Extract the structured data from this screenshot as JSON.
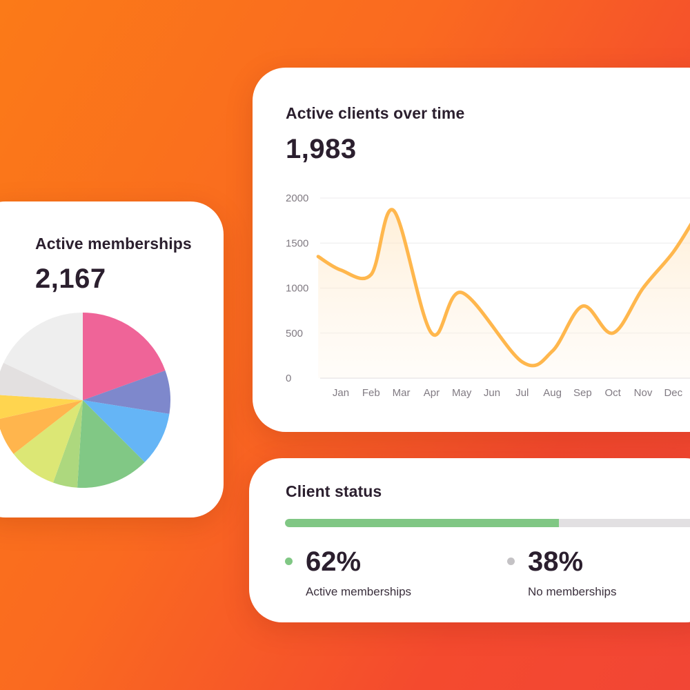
{
  "cards": {
    "memberships": {
      "title": "Active memberships",
      "total": "2,167"
    },
    "clients": {
      "title": "Active clients over time",
      "total": "1,983"
    },
    "status": {
      "title": "Client status",
      "active": {
        "percent": "62%",
        "label": "Active memberships",
        "color": "#80c784"
      },
      "inactive": {
        "percent": "38%",
        "label": "No memberships",
        "color": "#c4c2c5"
      },
      "bar_fraction": 0.62
    }
  },
  "chart_data": [
    {
      "type": "pie",
      "values": [
        19.5,
        8,
        10,
        13.5,
        4.5,
        9,
        7,
        4.5,
        6,
        18
      ],
      "colors": [
        "#ef6498",
        "#7e88cc",
        "#65b5f6",
        "#81c885",
        "#add87e",
        "#dce775",
        "#ffb54d",
        "#ffd54f",
        "#e3e0e0",
        "#eeeeee"
      ]
    },
    {
      "type": "line",
      "categories": [
        "Jan",
        "Feb",
        "Mar",
        "Apr",
        "May",
        "Jun",
        "Jul",
        "Aug",
        "Sep",
        "Oct",
        "Nov",
        "Dec"
      ],
      "ylim": [
        0,
        2000
      ],
      "yticks": [
        "0",
        "500",
        "1000",
        "1500",
        "2000"
      ],
      "grid": true,
      "line_color": "#ffb74d",
      "series": [
        {
          "x": [
            -0.75,
            0,
            1,
            1.75,
            3,
            4,
            6,
            7,
            8,
            9,
            10,
            11,
            11.75
          ],
          "values": [
            1350,
            1200,
            1150,
            1860,
            500,
            950,
            180,
            300,
            800,
            500,
            1000,
            1400,
            1800
          ]
        }
      ]
    }
  ]
}
